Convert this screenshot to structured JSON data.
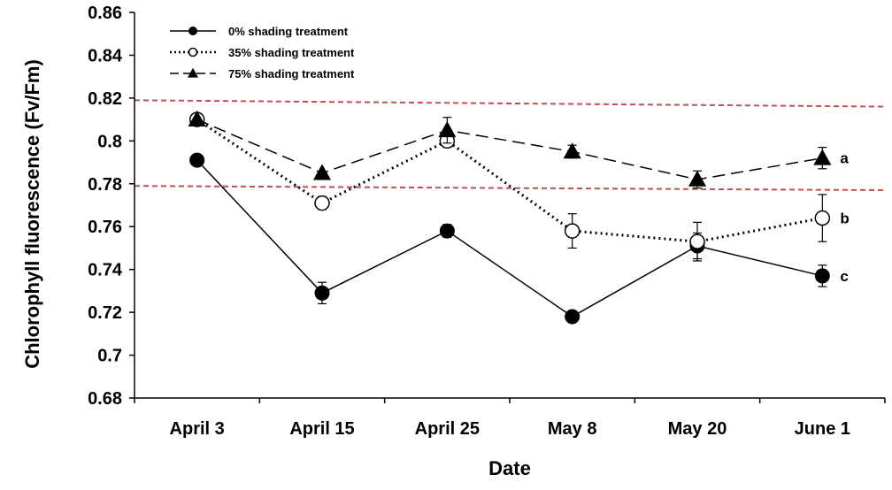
{
  "chart_data": {
    "type": "line",
    "xlabel": "Date",
    "ylabel": "Chlorophyll fluorescence (Fv/Fm)",
    "categories": [
      "April 3",
      "April 15",
      "April 25",
      "May 8",
      "May 20",
      "June 1"
    ],
    "ylim": [
      0.68,
      0.86
    ],
    "yticks": [
      0.68,
      0.7,
      0.72,
      0.74,
      0.76,
      0.78,
      0.8,
      0.82,
      0.84,
      0.86
    ],
    "ytick_labels": [
      "0.68",
      "0.7",
      "0.72",
      "0.74",
      "0.76",
      "0.78",
      "0.8",
      "0.82",
      "0.84",
      "0.86"
    ],
    "grid": false,
    "legend_position": "top-left",
    "series": [
      {
        "name": "0% shading treatment",
        "marker": "filled-circle",
        "line_style": "solid",
        "values": [
          0.791,
          0.729,
          0.758,
          0.718,
          0.751,
          0.737
        ],
        "errors": [
          0.0,
          0.005,
          0.003,
          0.002,
          0.006,
          0.005
        ],
        "label": "c"
      },
      {
        "name": "35% shading treatment",
        "marker": "open-circle",
        "line_style": "dotted",
        "values": [
          0.81,
          0.771,
          0.8,
          0.758,
          0.753,
          0.764
        ],
        "errors": [
          0.0,
          0.003,
          0.003,
          0.008,
          0.009,
          0.011
        ],
        "label": "b"
      },
      {
        "name": "75% shading treatment",
        "marker": "filled-triangle",
        "line_style": "dashed",
        "values": [
          0.81,
          0.785,
          0.805,
          0.795,
          0.782,
          0.792
        ],
        "errors": [
          0.0,
          0.0,
          0.006,
          0.003,
          0.004,
          0.005
        ],
        "label": "a"
      }
    ],
    "reference_lines": [
      {
        "y_start": 0.819,
        "y_end": 0.816,
        "color": "#c0504d",
        "style": "dashed"
      },
      {
        "y_start": 0.779,
        "y_end": 0.777,
        "color": "#c0504d",
        "style": "dashed"
      }
    ]
  }
}
